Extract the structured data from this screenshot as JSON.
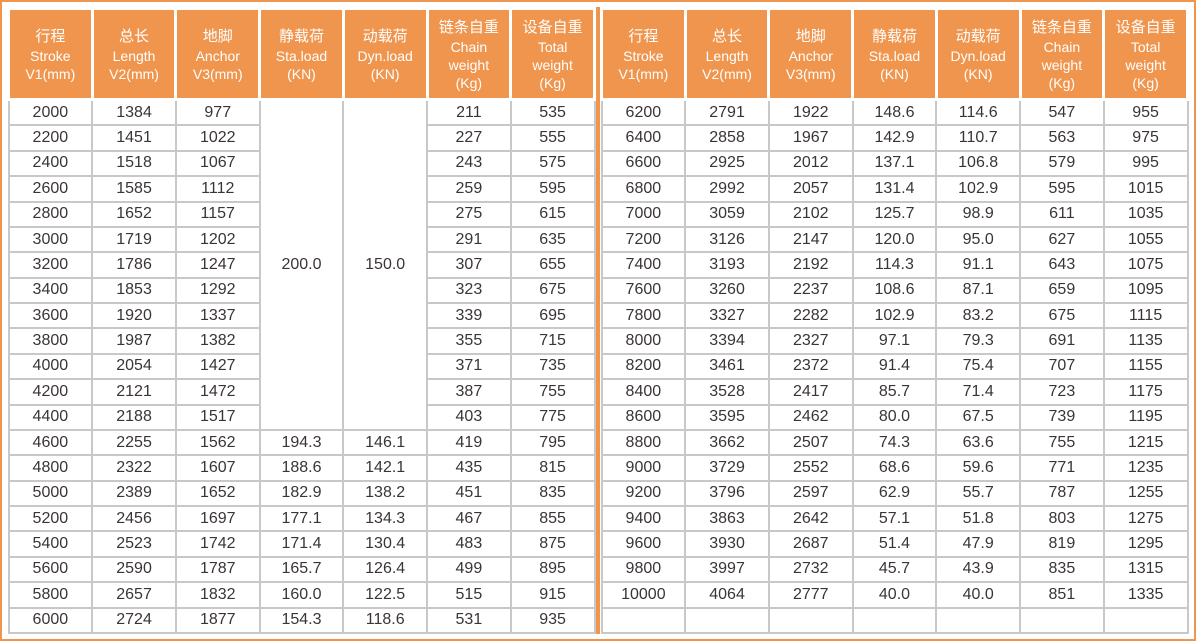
{
  "colors": {
    "accent_orange": "#F0954E",
    "grid_gray": "#C8C8C8",
    "data_text": "#3A3435",
    "header_text": "#FFFFFF",
    "background": "#FFFFFF"
  },
  "chart_data": {
    "type": "table",
    "title": "",
    "header_columns": [
      [
        "行程",
        "Stroke",
        "V1(mm)"
      ],
      [
        "总长",
        "Length",
        "V2(mm)"
      ],
      [
        "地脚",
        "Anchor",
        "V3(mm)"
      ],
      [
        "静载荷",
        "Sta.load",
        "(KN)"
      ],
      [
        "动载荷",
        "Dyn.load",
        "(KN)"
      ],
      [
        "链条自重",
        "Chain",
        "weight",
        "(Kg)"
      ],
      [
        "设备自重",
        "Total",
        "weight",
        "(Kg)"
      ]
    ],
    "header_repeated": 2,
    "left_table": {
      "merges": [
        {
          "col": 3,
          "row": 0,
          "rowSpan": 13,
          "value": "200.0"
        },
        {
          "col": 4,
          "row": 0,
          "rowSpan": 13,
          "value": "150.0"
        }
      ],
      "rows": [
        [
          "2000",
          "1384",
          "977",
          null,
          null,
          "211",
          "535"
        ],
        [
          "2200",
          "1451",
          "1022",
          null,
          null,
          "227",
          "555"
        ],
        [
          "2400",
          "1518",
          "1067",
          null,
          null,
          "243",
          "575"
        ],
        [
          "2600",
          "1585",
          "1112",
          null,
          null,
          "259",
          "595"
        ],
        [
          "2800",
          "1652",
          "1157",
          null,
          null,
          "275",
          "615"
        ],
        [
          "3000",
          "1719",
          "1202",
          null,
          null,
          "291",
          "635"
        ],
        [
          "3200",
          "1786",
          "1247",
          null,
          null,
          "307",
          "655"
        ],
        [
          "3400",
          "1853",
          "1292",
          null,
          null,
          "323",
          "675"
        ],
        [
          "3600",
          "1920",
          "1337",
          null,
          null,
          "339",
          "695"
        ],
        [
          "3800",
          "1987",
          "1382",
          null,
          null,
          "355",
          "715"
        ],
        [
          "4000",
          "2054",
          "1427",
          null,
          null,
          "371",
          "735"
        ],
        [
          "4200",
          "2121",
          "1472",
          null,
          null,
          "387",
          "755"
        ],
        [
          "4400",
          "2188",
          "1517",
          null,
          null,
          "403",
          "775"
        ],
        [
          "4600",
          "2255",
          "1562",
          "194.3",
          "146.1",
          "419",
          "795"
        ],
        [
          "4800",
          "2322",
          "1607",
          "188.6",
          "142.1",
          "435",
          "815"
        ],
        [
          "5000",
          "2389",
          "1652",
          "182.9",
          "138.2",
          "451",
          "835"
        ],
        [
          "5200",
          "2456",
          "1697",
          "177.1",
          "134.3",
          "467",
          "855"
        ],
        [
          "5400",
          "2523",
          "1742",
          "171.4",
          "130.4",
          "483",
          "875"
        ],
        [
          "5600",
          "2590",
          "1787",
          "165.7",
          "126.4",
          "499",
          "895"
        ],
        [
          "5800",
          "2657",
          "1832",
          "160.0",
          "122.5",
          "515",
          "915"
        ],
        [
          "6000",
          "2724",
          "1877",
          "154.3",
          "118.6",
          "531",
          "935"
        ]
      ]
    },
    "right_table": {
      "merges": [],
      "rows": [
        [
          "6200",
          "2791",
          "1922",
          "148.6",
          "114.6",
          "547",
          "955"
        ],
        [
          "6400",
          "2858",
          "1967",
          "142.9",
          "110.7",
          "563",
          "975"
        ],
        [
          "6600",
          "2925",
          "2012",
          "137.1",
          "106.8",
          "579",
          "995"
        ],
        [
          "6800",
          "2992",
          "2057",
          "131.4",
          "102.9",
          "595",
          "1015"
        ],
        [
          "7000",
          "3059",
          "2102",
          "125.7",
          "98.9",
          "611",
          "1035"
        ],
        [
          "7200",
          "3126",
          "2147",
          "120.0",
          "95.0",
          "627",
          "1055"
        ],
        [
          "7400",
          "3193",
          "2192",
          "114.3",
          "91.1",
          "643",
          "1075"
        ],
        [
          "7600",
          "3260",
          "2237",
          "108.6",
          "87.1",
          "659",
          "1095"
        ],
        [
          "7800",
          "3327",
          "2282",
          "102.9",
          "83.2",
          "675",
          "1115"
        ],
        [
          "8000",
          "3394",
          "2327",
          "97.1",
          "79.3",
          "691",
          "1135"
        ],
        [
          "8200",
          "3461",
          "2372",
          "91.4",
          "75.4",
          "707",
          "1155"
        ],
        [
          "8400",
          "3528",
          "2417",
          "85.7",
          "71.4",
          "723",
          "1175"
        ],
        [
          "8600",
          "3595",
          "2462",
          "80.0",
          "67.5",
          "739",
          "1195"
        ],
        [
          "8800",
          "3662",
          "2507",
          "74.3",
          "63.6",
          "755",
          "1215"
        ],
        [
          "9000",
          "3729",
          "2552",
          "68.6",
          "59.6",
          "771",
          "1235"
        ],
        [
          "9200",
          "3796",
          "2597",
          "62.9",
          "55.7",
          "787",
          "1255"
        ],
        [
          "9400",
          "3863",
          "2642",
          "57.1",
          "51.8",
          "803",
          "1275"
        ],
        [
          "9600",
          "3930",
          "2687",
          "51.4",
          "47.9",
          "819",
          "1295"
        ],
        [
          "9800",
          "3997",
          "2732",
          "45.7",
          "43.9",
          "835",
          "1315"
        ],
        [
          "10000",
          "4064",
          "2777",
          "40.0",
          "40.0",
          "851",
          "1335"
        ],
        [
          "",
          "",
          "",
          "",
          "",
          "",
          ""
        ]
      ]
    }
  }
}
